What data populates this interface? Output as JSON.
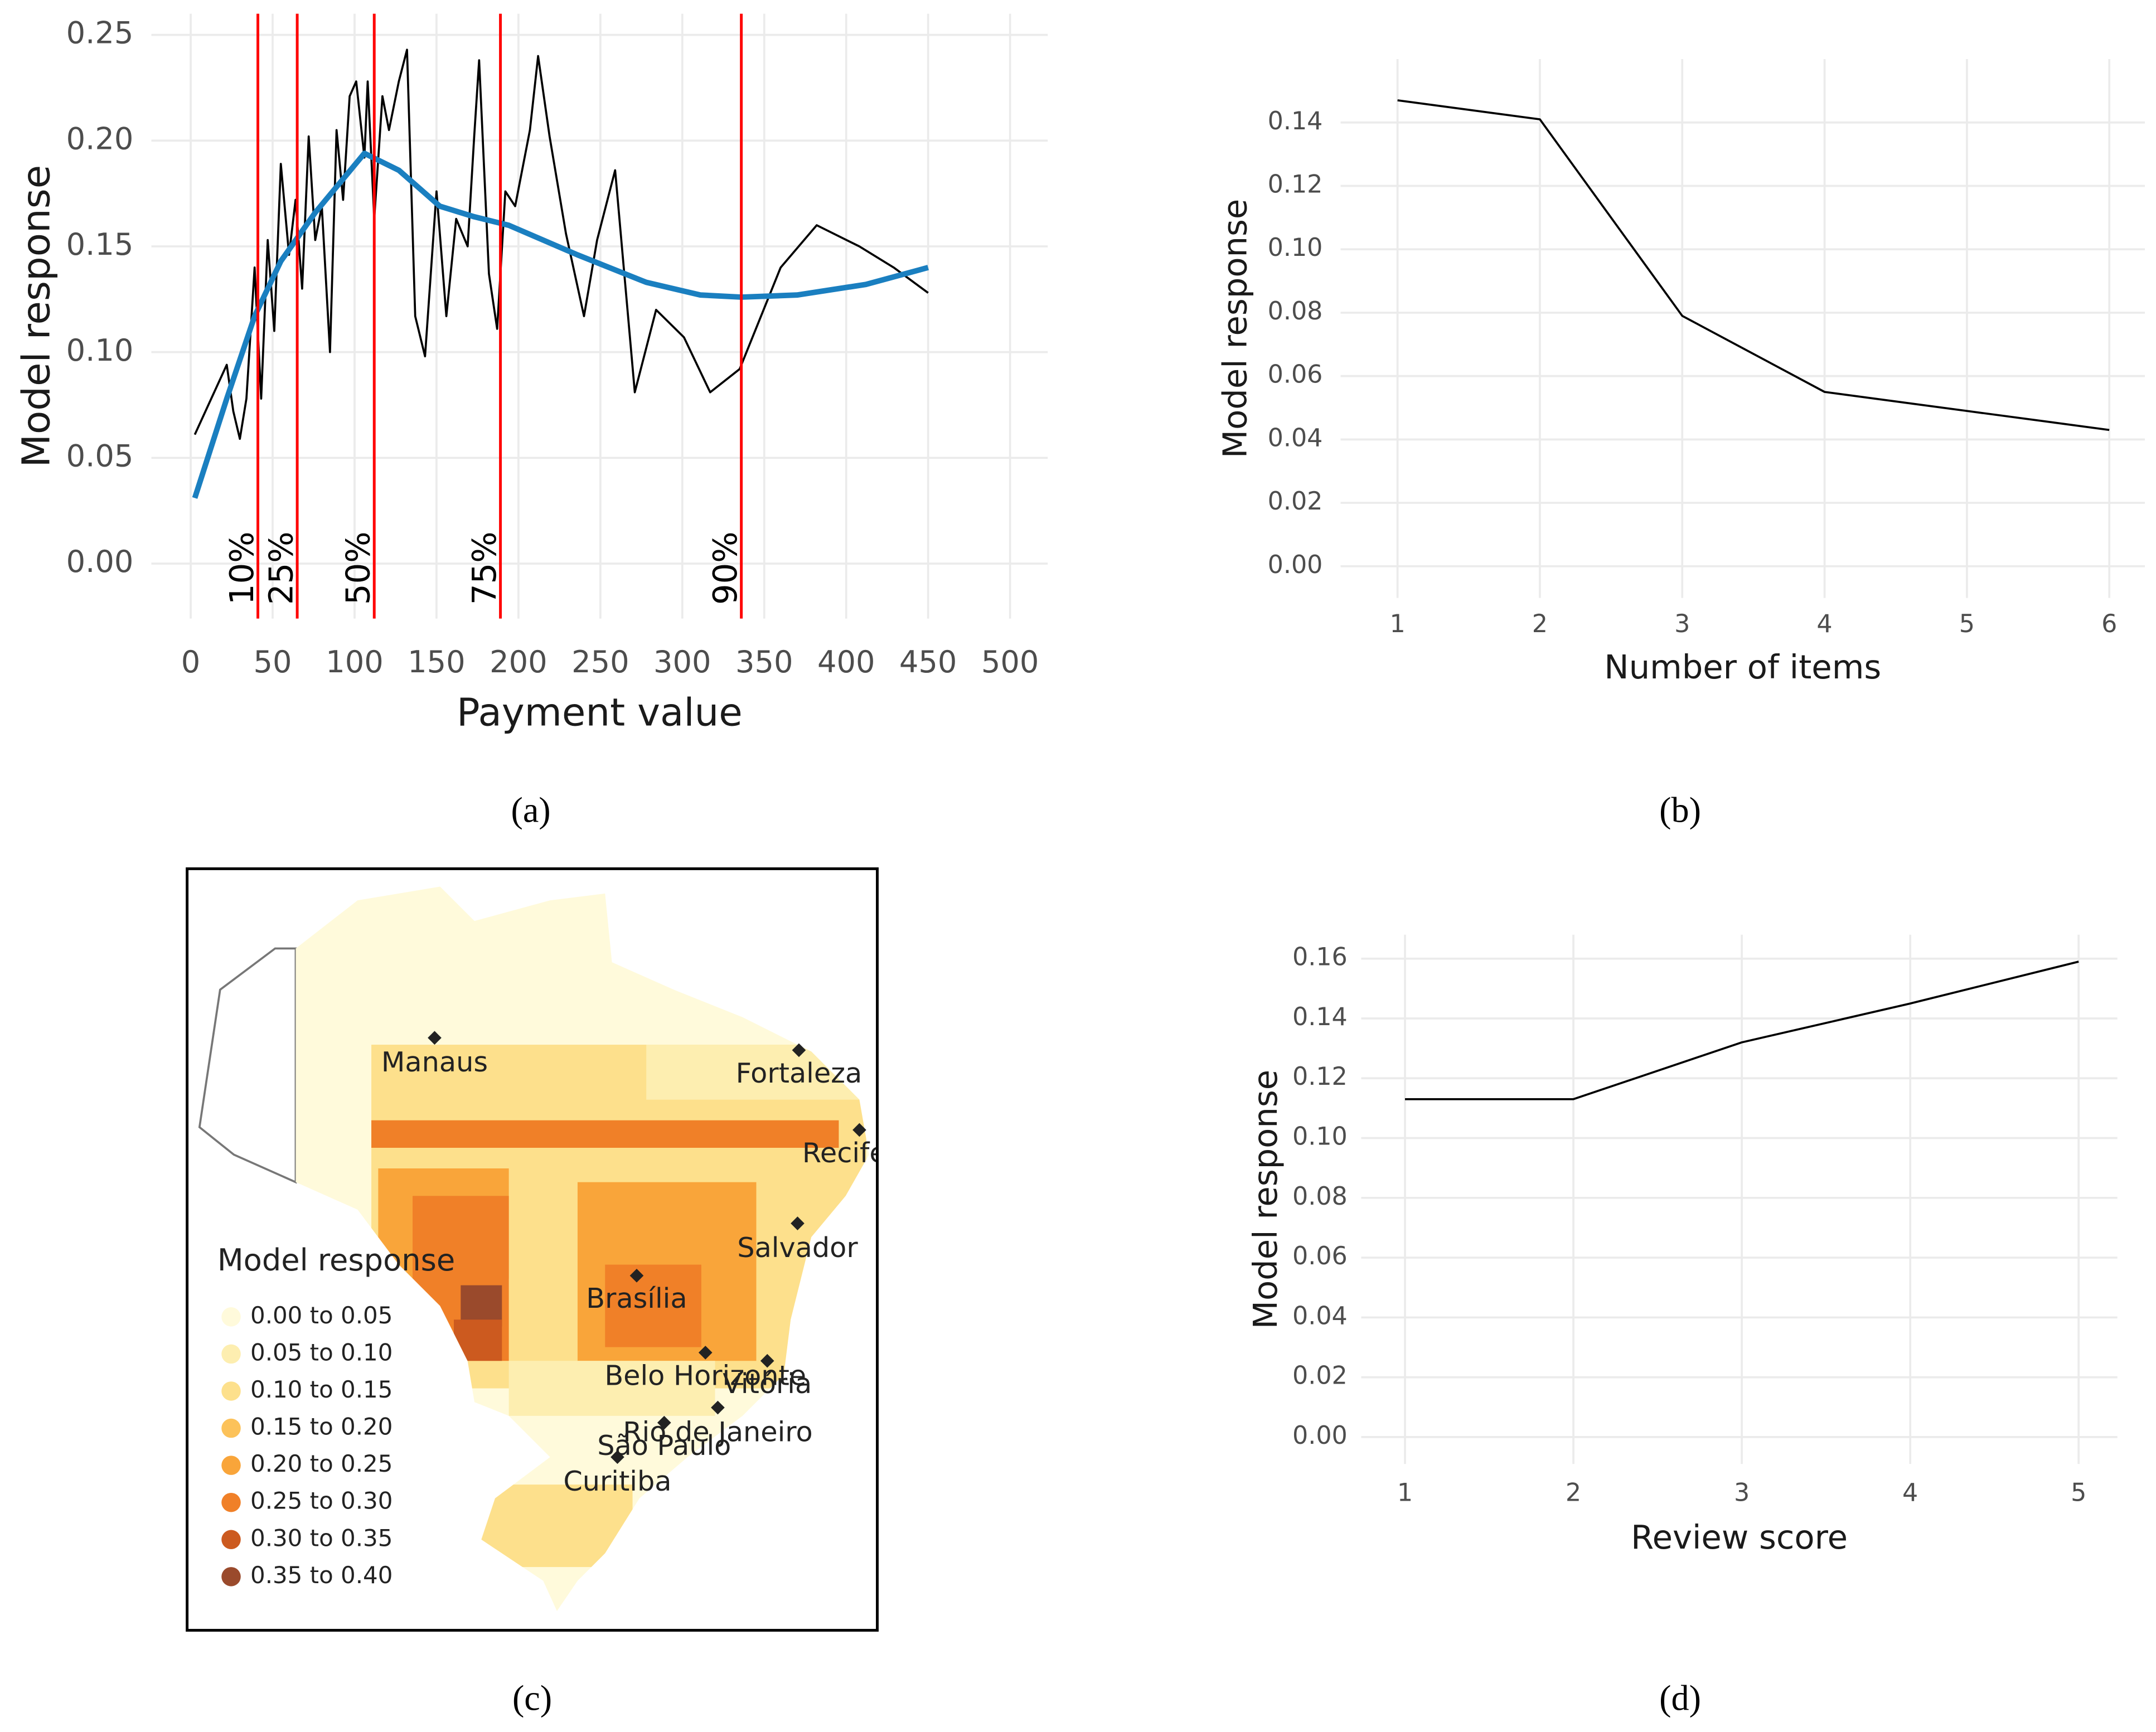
{
  "chart_data": [
    {
      "type": "line",
      "label": "(a)",
      "xlabel": "Payment value",
      "ylabel": "Model response",
      "xlim": [
        -24,
        523
      ],
      "ylim": [
        -0.026,
        0.26
      ],
      "xticks": [
        0,
        50,
        100,
        150,
        200,
        250,
        300,
        350,
        400,
        450,
        500
      ],
      "yticks": [
        {
          "value": 0,
          "label": "0.00"
        },
        {
          "value": 0.05,
          "label": "0.05"
        },
        {
          "value": 0.1,
          "label": "0.10"
        },
        {
          "value": 0.15,
          "label": "0.15"
        },
        {
          "value": 0.2,
          "label": "0.20"
        },
        {
          "value": 0.25,
          "label": "0.25"
        }
      ],
      "grid": true,
      "series": [
        {
          "color": "#000000",
          "width": 1.5,
          "x": [
            2.5,
            22,
            26,
            30,
            34,
            39,
            43,
            47,
            51,
            55,
            60,
            64,
            68,
            72,
            76,
            80,
            85,
            89,
            93,
            97,
            101,
            106,
            108,
            112,
            117,
            121,
            127,
            132,
            137,
            143,
            150,
            156,
            162,
            169,
            173,
            176,
            182,
            187,
            192,
            198,
            207,
            212,
            219,
            229,
            240,
            248,
            259,
            271,
            284,
            301,
            317,
            335,
            360,
            382,
            408,
            429,
            450
          ],
          "values": [
            0.061,
            0.094,
            0.072,
            0.059,
            0.078,
            0.14,
            0.078,
            0.153,
            0.11,
            0.189,
            0.146,
            0.172,
            0.13,
            0.202,
            0.153,
            0.169,
            0.1,
            0.205,
            0.172,
            0.221,
            0.228,
            0.192,
            0.228,
            0.163,
            0.221,
            0.205,
            0.228,
            0.243,
            0.117,
            0.098,
            0.176,
            0.117,
            0.163,
            0.15,
            0.202,
            0.238,
            0.137,
            0.111,
            0.176,
            0.169,
            0.205,
            0.24,
            0.202,
            0.156,
            0.117,
            0.153,
            0.186,
            0.081,
            0.12,
            0.107,
            0.081,
            0.092,
            0.14,
            0.16,
            0.15,
            0.14,
            0.128
          ]
        },
        {
          "color": "#1a7fc0",
          "width": 4,
          "x": [
            2.5,
            22,
            39,
            55,
            76,
            106,
            127,
            152,
            173,
            194,
            236,
            278,
            311,
            336,
            370,
            412,
            450
          ],
          "values": [
            0.031,
            0.078,
            0.117,
            0.143,
            0.166,
            0.194,
            0.186,
            0.169,
            0.164,
            0.16,
            0.146,
            0.133,
            0.127,
            0.126,
            0.127,
            0.132,
            0.14
          ]
        }
      ],
      "vlines": {
        "color": "#ff0000",
        "lines": [
          {
            "value": 41,
            "label": "10%"
          },
          {
            "value": 65,
            "label": "25%"
          },
          {
            "value": 112,
            "label": "50%"
          },
          {
            "value": 189,
            "label": "75%"
          },
          {
            "value": 336,
            "label": "90%"
          }
        ]
      }
    },
    {
      "type": "line",
      "label": "(b)",
      "xlabel": "Number of items",
      "ylabel": "Model response",
      "xlim": [
        0.6,
        6.25
      ],
      "ylim": [
        -0.01,
        0.16
      ],
      "xticks": [
        1,
        2,
        3,
        4,
        5,
        6
      ],
      "yticks": [
        {
          "value": 0,
          "label": "0.00"
        },
        {
          "value": 0.02,
          "label": "0.02"
        },
        {
          "value": 0.04,
          "label": "0.04"
        },
        {
          "value": 0.06,
          "label": "0.06"
        },
        {
          "value": 0.08,
          "label": "0.08"
        },
        {
          "value": 0.1,
          "label": "0.10"
        },
        {
          "value": 0.12,
          "label": "0.12"
        },
        {
          "value": 0.14,
          "label": "0.14"
        }
      ],
      "grid": true,
      "series": [
        {
          "color": "#000000",
          "width": 1.5,
          "x": [
            1,
            2,
            3,
            4,
            5,
            6
          ],
          "values": [
            0.147,
            0.141,
            0.079,
            0.055,
            0.049,
            0.043
          ]
        }
      ]
    },
    {
      "type": "map",
      "label": "(c)",
      "legend_title": "Model response",
      "legend": [
        {
          "label": "0.00 to 0.05",
          "color": "#fffadb"
        },
        {
          "label": "0.05 to 0.10",
          "color": "#fdeeb0"
        },
        {
          "label": "0.10 to 0.15",
          "color": "#fde08c"
        },
        {
          "label": "0.15 to 0.20",
          "color": "#fcc25a"
        },
        {
          "label": "0.20 to 0.25",
          "color": "#f9a53a"
        },
        {
          "label": "0.25 to 0.30",
          "color": "#f08028"
        },
        {
          "label": "0.30 to 0.35",
          "color": "#cc5a1f"
        },
        {
          "label": "0.35 to 0.40",
          "color": "#9a4a2c"
        }
      ],
      "cities": [
        "Manaus",
        "Fortaleza",
        "Recife",
        "Salvador",
        "Brasília",
        "Belo Horizonte",
        "Vitória",
        "Rio de Janeiro",
        "São Paulo",
        "Curitiba"
      ]
    },
    {
      "type": "line",
      "label": "(d)",
      "xlabel": "Review score",
      "ylabel": "Model response",
      "xlim": [
        0.74,
        5.23
      ],
      "ylim": [
        -0.009,
        0.168
      ],
      "xticks": [
        1,
        2,
        3,
        4,
        5
      ],
      "yticks": [
        {
          "value": 0,
          "label": "0.00"
        },
        {
          "value": 0.02,
          "label": "0.02"
        },
        {
          "value": 0.04,
          "label": "0.04"
        },
        {
          "value": 0.06,
          "label": "0.06"
        },
        {
          "value": 0.08,
          "label": "0.08"
        },
        {
          "value": 0.1,
          "label": "0.10"
        },
        {
          "value": 0.12,
          "label": "0.12"
        },
        {
          "value": 0.14,
          "label": "0.14"
        },
        {
          "value": 0.16,
          "label": "0.16"
        }
      ],
      "grid": true,
      "series": [
        {
          "color": "#000000",
          "width": 1.5,
          "x": [
            1,
            2,
            3,
            4,
            5
          ],
          "values": [
            0.113,
            0.113,
            0.132,
            0.145,
            0.159
          ]
        }
      ]
    }
  ]
}
